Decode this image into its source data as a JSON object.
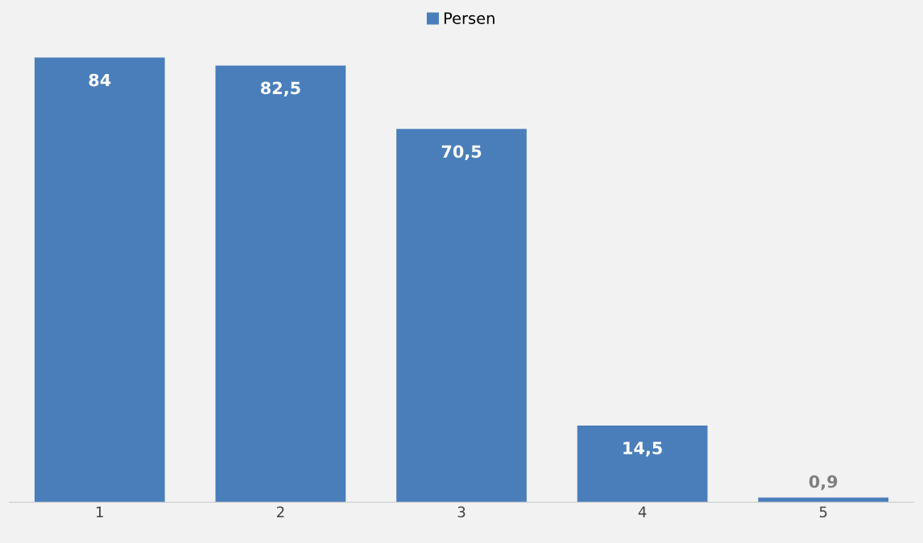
{
  "chart_data": {
    "type": "bar",
    "categories": [
      "1",
      "2",
      "3",
      "4",
      "5"
    ],
    "series": [
      {
        "name": "Persen",
        "color": "#4a7ebb",
        "values": [
          84,
          82.5,
          70.5,
          14.5,
          0.9
        ],
        "value_labels": [
          "84",
          "82,5",
          "70,5",
          "14,5",
          "0,9"
        ]
      }
    ],
    "tick_labels": "x",
    "legend": "top",
    "grid": false
  }
}
